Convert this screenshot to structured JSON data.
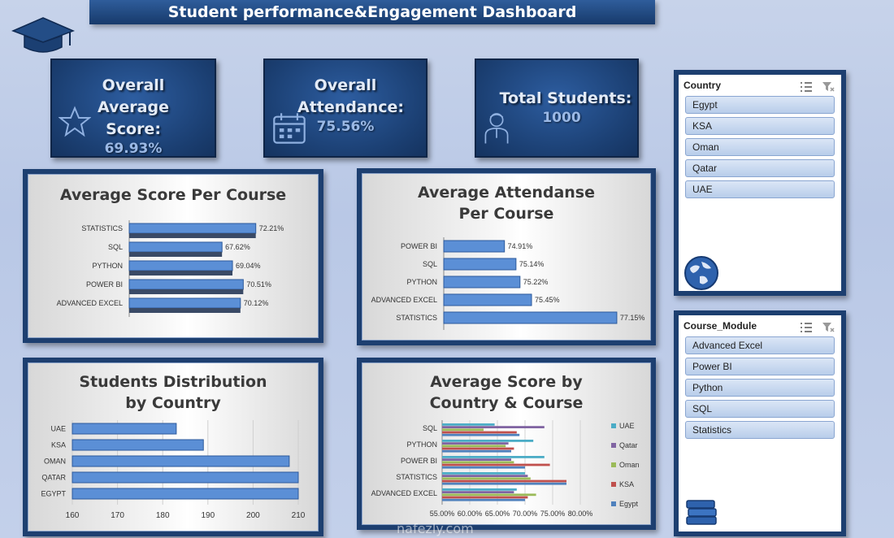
{
  "dashboard": {
    "title": "Student performance&Engagement Dashboard"
  },
  "kpis": [
    {
      "label": "Overall Average Score:",
      "value": "69.93%",
      "icon": "star-icon"
    },
    {
      "label": "Overall Attendance:",
      "value": "75.56%",
      "icon": "calendar-icon"
    },
    {
      "label": "Total Students:",
      "value": "1000",
      "icon": "student-icon"
    }
  ],
  "slicers": {
    "country": {
      "title": "Country",
      "items": [
        "Egypt",
        "KSA",
        "Oman",
        "Qatar",
        "UAE"
      ]
    },
    "course": {
      "title": "Course_Module",
      "items": [
        "Advanced Excel",
        "Power BI",
        "Python",
        "SQL",
        "Statistics"
      ]
    }
  },
  "watermark": "nafezly.com",
  "chart_data": [
    {
      "type": "bar",
      "title": "Average Score Per Course",
      "categories": [
        "STATISTICS",
        "SQL",
        "PYTHON",
        "POWER BI",
        "ADVANCED EXCEL"
      ],
      "values": [
        72.21,
        67.62,
        69.04,
        70.51,
        70.12
      ],
      "labels": [
        "72.21%",
        "67.62%",
        "69.04%",
        "70.51%",
        "70.12%"
      ],
      "xlim": [
        55,
        76
      ]
    },
    {
      "type": "bar",
      "title": "Average Attendanse Per Course",
      "categories": [
        "POWER BI",
        "SQL",
        "PYTHON",
        "ADVANCED EXCEL",
        "STATISTICS"
      ],
      "values": [
        74.91,
        75.14,
        75.22,
        75.45,
        77.15
      ],
      "labels": [
        "74.91%",
        "75.14%",
        "75.22%",
        "75.45%",
        "77.15%"
      ],
      "xlim": [
        73.7,
        77.2
      ]
    },
    {
      "type": "bar",
      "title": "Students Distribution by Country",
      "categories": [
        "UAE",
        "KSA",
        "OMAN",
        "QATAR",
        "EGYPT"
      ],
      "values": [
        183,
        189,
        208,
        210,
        210
      ],
      "ticks": [
        "160",
        "170",
        "180",
        "190",
        "200",
        "210"
      ],
      "xlim": [
        160,
        210
      ]
    },
    {
      "type": "bar",
      "title": "Average Score by Country & Course",
      "categories": [
        "SQL",
        "PYTHON",
        "POWER BI",
        "STATISTICS",
        "ADVANCED EXCEL"
      ],
      "ticks": [
        "55.00%",
        "60.00%",
        "65.00%",
        "70.00%",
        "75.00%",
        "80.00%"
      ],
      "xlim": [
        55,
        80
      ],
      "series": [
        {
          "name": "UAE",
          "color": "#4bacc6",
          "values": [
            64.5,
            71.5,
            73.5,
            70.0,
            68.5
          ]
        },
        {
          "name": "Qatar",
          "color": "#8064a2",
          "values": [
            73.5,
            67.0,
            67.5,
            70.5,
            68.0
          ]
        },
        {
          "name": "Oman",
          "color": "#9bbb59",
          "values": [
            62.5,
            66.5,
            68.0,
            71.0,
            72.0
          ]
        },
        {
          "name": "KSA",
          "color": "#c0504d",
          "values": [
            68.5,
            68.0,
            74.5,
            77.5,
            70.5
          ]
        },
        {
          "name": "Egypt",
          "color": "#4f81bd",
          "values": [
            69.0,
            67.5,
            70.0,
            77.5,
            70.0
          ]
        }
      ]
    }
  ]
}
